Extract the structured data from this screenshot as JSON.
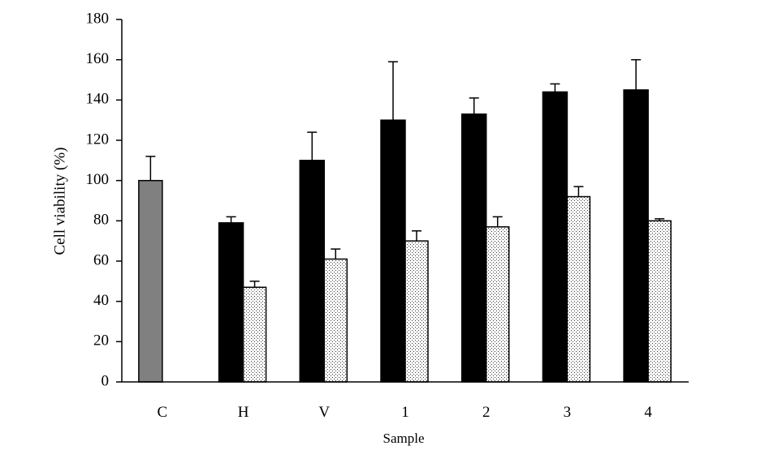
{
  "chart_data": {
    "type": "bar",
    "y_label": "Cell viability (%)",
    "x_label": "Sample",
    "categories": [
      "C",
      "H",
      "V",
      "1",
      "2",
      "3",
      "4"
    ],
    "series": [
      {
        "color": "#808080",
        "values": [
          100,
          null,
          null,
          null,
          null,
          null,
          null
        ],
        "errors": [
          12,
          null,
          null,
          null,
          null,
          null,
          null
        ]
      },
      {
        "color": "#000000",
        "values": [
          null,
          79,
          110,
          130,
          133,
          144,
          145
        ],
        "errors": [
          null,
          3,
          14,
          29,
          8,
          4,
          15
        ]
      },
      {
        "color": "dotted",
        "values": [
          null,
          47,
          61,
          70,
          77,
          92,
          80
        ],
        "errors": [
          null,
          3,
          5,
          5,
          5,
          5,
          1
        ]
      }
    ],
    "ylim": [
      0,
      180
    ],
    "yticks": [
      0,
      20,
      40,
      60,
      80,
      100,
      120,
      140,
      160,
      180
    ],
    "grid": false
  }
}
